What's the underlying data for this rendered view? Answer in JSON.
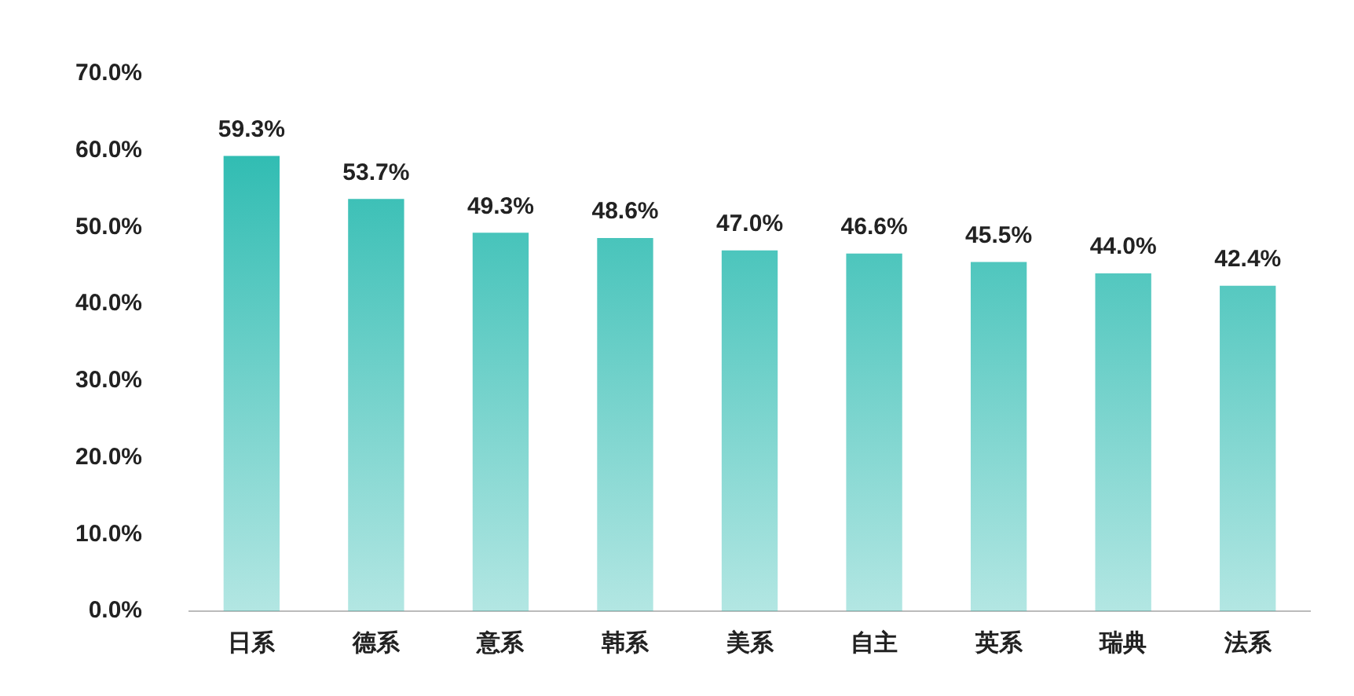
{
  "chart_data": {
    "type": "bar",
    "categories": [
      "日系",
      "德系",
      "意系",
      "韩系",
      "美系",
      "自主",
      "英系",
      "瑞典",
      "法系"
    ],
    "values": [
      59.3,
      53.7,
      49.3,
      48.6,
      47.0,
      46.6,
      45.5,
      44.0,
      42.4
    ],
    "value_labels": [
      "59.3%",
      "53.7%",
      "49.3%",
      "48.6%",
      "47.0%",
      "46.6%",
      "45.5%",
      "44.0%",
      "42.4%"
    ],
    "color": "#1ab5aa",
    "ylim": [
      0,
      70
    ],
    "yticks": [
      {
        "value": 0,
        "label": "0.0%"
      },
      {
        "value": 10,
        "label": "10.0%"
      },
      {
        "value": 20,
        "label": "20.0%"
      },
      {
        "value": 30,
        "label": "30.0%"
      },
      {
        "value": 40,
        "label": "40.0%"
      },
      {
        "value": 50,
        "label": "50.0%"
      },
      {
        "value": 60,
        "label": "60.0%"
      },
      {
        "value": 70,
        "label": "70.0%"
      }
    ],
    "grid": false
  }
}
